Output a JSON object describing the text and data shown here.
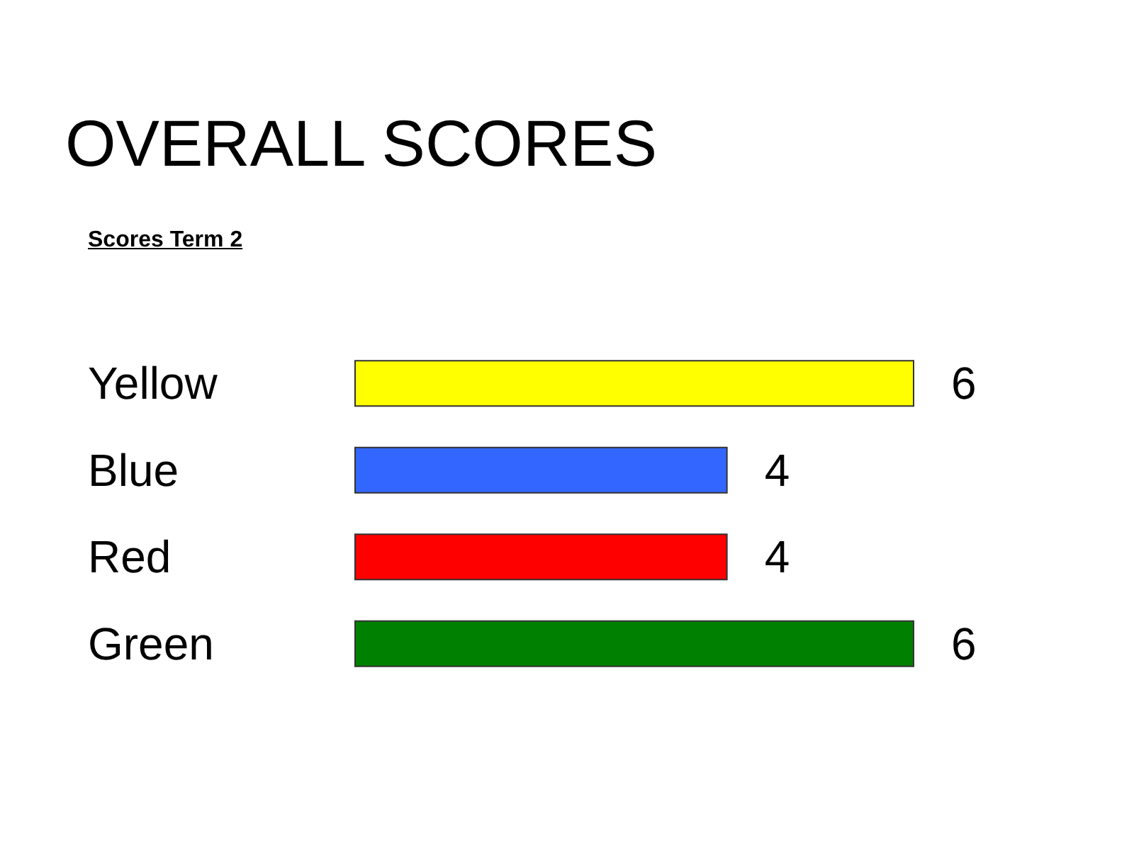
{
  "chart_data": {
    "type": "bar",
    "orientation": "horizontal",
    "title": "OVERALL SCORES",
    "subtitle": "Scores Term 2",
    "categories": [
      "Yellow",
      "Blue",
      "Red",
      "Green"
    ],
    "values": [
      6,
      4,
      4,
      6
    ],
    "colors": [
      "#ffff00",
      "#3366ff",
      "#ff0000",
      "#008000"
    ],
    "data_labels": true
  }
}
